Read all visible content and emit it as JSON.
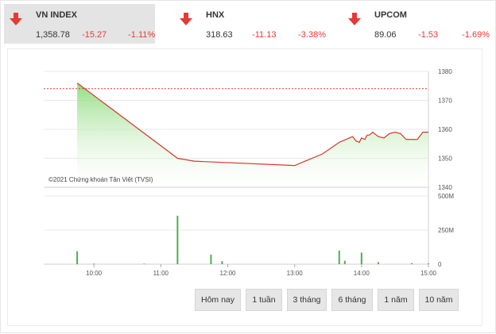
{
  "indices": [
    {
      "name": "VN INDEX",
      "value": "1,358.78",
      "change": "-15.27",
      "percent": "-1.11%"
    },
    {
      "name": "HNX",
      "value": "318.63",
      "change": "-11.13",
      "percent": "-3.38%"
    },
    {
      "name": "UPCOM",
      "value": "89.06",
      "change": "-1.53",
      "percent": "-1.69%"
    }
  ],
  "buttons": [
    "Hôm nay",
    "1 tuần",
    "3 tháng",
    "6 tháng",
    "1 năm",
    "10 năm"
  ],
  "watermark": "©2021 Chứng khoán Tân Việt (TVSI)",
  "colors": {
    "down": "#e53935",
    "line": "#d9362c",
    "area_top": "#8edb7c",
    "volume": "#4caf50",
    "reference": "#e53935"
  },
  "chart_data": [
    {
      "type": "area",
      "reference_line": 1374.05,
      "ylim": [
        1340,
        1380
      ],
      "yticks": [
        1340,
        1350,
        1360,
        1370,
        1380
      ],
      "xticks": [
        "10:00",
        "11:00",
        "12:00",
        "13:00",
        "14:00",
        "15:00"
      ],
      "x": [
        "09:45",
        "11:15",
        "11:30",
        "13:00",
        "13:25",
        "13:40",
        "13:52",
        "13:55",
        "13:58",
        "14:00",
        "14:03",
        "14:05",
        "14:07",
        "14:10",
        "14:15",
        "14:20",
        "14:25",
        "14:30",
        "14:35",
        "14:40",
        "14:45",
        "14:50",
        "14:55",
        "15:00"
      ],
      "y": [
        1376,
        1350,
        1349,
        1347.5,
        1351.5,
        1355.5,
        1357.5,
        1356,
        1355.5,
        1357,
        1356.5,
        1358,
        1358,
        1359,
        1357.5,
        1357,
        1358.5,
        1359,
        1358.5,
        1356.5,
        1356.5,
        1356.5,
        1359,
        1359
      ]
    },
    {
      "type": "bar",
      "ylim": [
        0,
        500
      ],
      "yticks": [
        "0",
        "250M",
        "500M"
      ],
      "x": [
        "09:45",
        "10:00",
        "10:45",
        "11:15",
        "11:45",
        "11:55",
        "13:40",
        "13:45",
        "14:00",
        "14:15",
        "14:45",
        "15:00"
      ],
      "values": [
        95,
        4,
        4,
        355,
        70,
        22,
        100,
        25,
        85,
        15,
        8,
        5
      ]
    }
  ]
}
